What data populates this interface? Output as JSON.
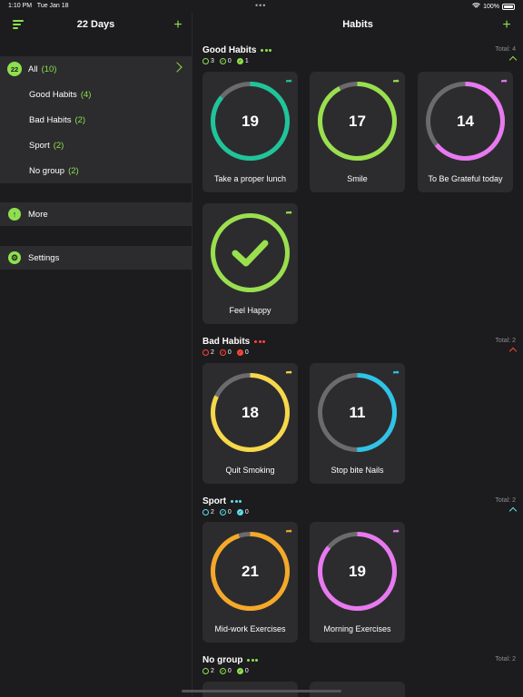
{
  "status": {
    "time": "1:10 PM",
    "date": "Tue Jan 18",
    "battery": "100%"
  },
  "sidebar": {
    "title": "22 Days",
    "all": {
      "badge": "22",
      "label": "All",
      "count": "(10)"
    },
    "groups": [
      {
        "label": "Good Habits",
        "count": "(4)"
      },
      {
        "label": "Bad Habits",
        "count": "(2)"
      },
      {
        "label": "Sport",
        "count": "(2)"
      },
      {
        "label": "No group",
        "count": "(2)"
      }
    ],
    "more": "More",
    "settings": "Settings"
  },
  "main": {
    "title": "Habits"
  },
  "sections": [
    {
      "title": "Good Habits",
      "total": "Total: 4",
      "color": "#8ee04e",
      "stats": [
        "3",
        "0",
        "1"
      ]
    },
    {
      "title": "Bad Habits",
      "total": "Total: 2",
      "color": "#ff453a",
      "stats": [
        "2",
        "0",
        "0"
      ]
    },
    {
      "title": "Sport",
      "total": "Total: 2",
      "color": "#5ee0e8",
      "stats": [
        "2",
        "0",
        "0"
      ]
    },
    {
      "title": "No group",
      "total": "Total: 2",
      "color": "#8ee04e",
      "stats": [
        "2",
        "0",
        "0"
      ]
    }
  ],
  "habits": [
    {
      "name": "Take a proper lunch",
      "days": "19",
      "progress": 0.86,
      "color": "#1fc59a"
    },
    {
      "name": "Smile",
      "days": "17",
      "progress": 0.92,
      "color": "#9ae04e"
    },
    {
      "name": "To Be Grateful today",
      "days": "14",
      "progress": 0.64,
      "color": "#e879f0"
    },
    {
      "name": "Feel Happy",
      "days": "",
      "progress": 1.0,
      "color": "#9ae04e",
      "done": true
    },
    {
      "name": "Quit Smoking",
      "days": "18",
      "progress": 0.82,
      "color": "#f6d84a"
    },
    {
      "name": "Stop bite Nails",
      "days": "11",
      "progress": 0.5,
      "color": "#2ec4e8"
    },
    {
      "name": "Mid-work Exercises",
      "days": "21",
      "progress": 0.95,
      "color": "#f6a829"
    },
    {
      "name": "Morning Exercises",
      "days": "19",
      "progress": 0.86,
      "color": "#e879f0"
    }
  ]
}
